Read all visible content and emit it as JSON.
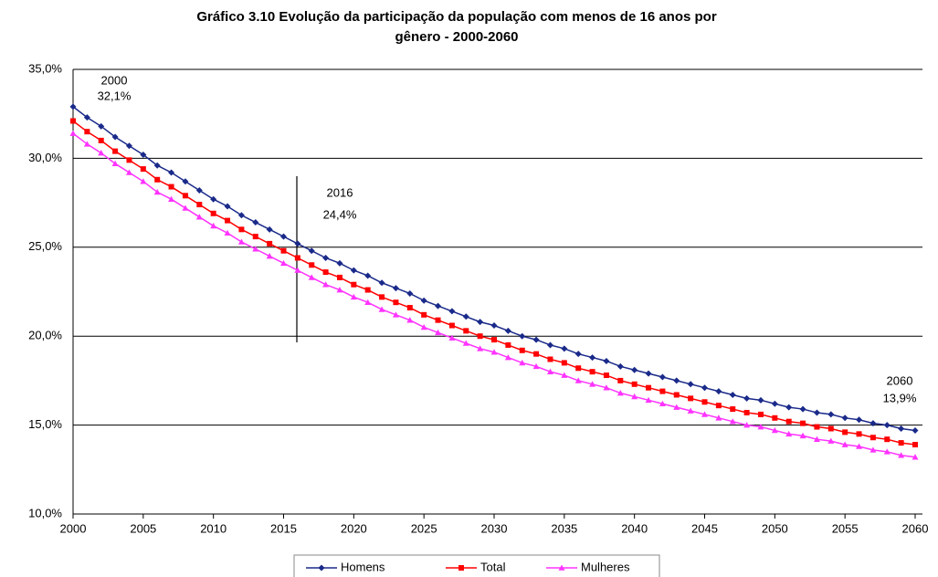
{
  "chart_data": {
    "type": "line",
    "title": [
      "Gráfico 3.10  Evolução da participação da população com menos de 16 anos por",
      "gênero - 2000-2060"
    ],
    "x": [
      2000,
      2001,
      2002,
      2003,
      2004,
      2005,
      2006,
      2007,
      2008,
      2009,
      2010,
      2011,
      2012,
      2013,
      2014,
      2015,
      2016,
      2017,
      2018,
      2019,
      2020,
      2021,
      2022,
      2023,
      2024,
      2025,
      2026,
      2027,
      2028,
      2029,
      2030,
      2031,
      2032,
      2033,
      2034,
      2035,
      2036,
      2037,
      2038,
      2039,
      2040,
      2041,
      2042,
      2043,
      2044,
      2045,
      2046,
      2047,
      2048,
      2049,
      2050,
      2051,
      2052,
      2053,
      2054,
      2055,
      2056,
      2057,
      2058,
      2059,
      2060
    ],
    "series": [
      {
        "name": "Homens",
        "color": "#1a2a8a",
        "marker": "diamond",
        "values": [
          32.9,
          32.3,
          31.8,
          31.2,
          30.7,
          30.2,
          29.6,
          29.2,
          28.7,
          28.2,
          27.7,
          27.3,
          26.8,
          26.4,
          26.0,
          25.6,
          25.2,
          24.8,
          24.4,
          24.1,
          23.7,
          23.4,
          23.0,
          22.7,
          22.4,
          22.0,
          21.7,
          21.4,
          21.1,
          20.8,
          20.6,
          20.3,
          20.0,
          19.8,
          19.5,
          19.3,
          19.0,
          18.8,
          18.6,
          18.3,
          18.1,
          17.9,
          17.7,
          17.5,
          17.3,
          17.1,
          16.9,
          16.7,
          16.5,
          16.4,
          16.2,
          16.0,
          15.9,
          15.7,
          15.6,
          15.4,
          15.3,
          15.1,
          15.0,
          14.8,
          14.7
        ]
      },
      {
        "name": "Total",
        "color": "#ff0000",
        "marker": "square",
        "values": [
          32.1,
          31.5,
          31.0,
          30.4,
          29.9,
          29.4,
          28.8,
          28.4,
          27.9,
          27.4,
          26.9,
          26.5,
          26.0,
          25.6,
          25.2,
          24.8,
          24.4,
          24.0,
          23.6,
          23.3,
          22.9,
          22.6,
          22.2,
          21.9,
          21.6,
          21.2,
          20.9,
          20.6,
          20.3,
          20.0,
          19.8,
          19.5,
          19.2,
          19.0,
          18.7,
          18.5,
          18.2,
          18.0,
          17.8,
          17.5,
          17.3,
          17.1,
          16.9,
          16.7,
          16.5,
          16.3,
          16.1,
          15.9,
          15.7,
          15.6,
          15.4,
          15.2,
          15.1,
          14.9,
          14.8,
          14.6,
          14.5,
          14.3,
          14.2,
          14.0,
          13.9
        ]
      },
      {
        "name": "Mulheres",
        "color": "#ff33ff",
        "marker": "triangle",
        "values": [
          31.4,
          30.8,
          30.3,
          29.7,
          29.2,
          28.7,
          28.1,
          27.7,
          27.2,
          26.7,
          26.2,
          25.8,
          25.3,
          24.9,
          24.5,
          24.1,
          23.7,
          23.3,
          22.9,
          22.6,
          22.2,
          21.9,
          21.5,
          21.2,
          20.9,
          20.5,
          20.2,
          19.9,
          19.6,
          19.3,
          19.1,
          18.8,
          18.5,
          18.3,
          18.0,
          17.8,
          17.5,
          17.3,
          17.1,
          16.8,
          16.6,
          16.4,
          16.2,
          16.0,
          15.8,
          15.6,
          15.4,
          15.2,
          15.0,
          14.9,
          14.7,
          14.5,
          14.4,
          14.2,
          14.1,
          13.9,
          13.8,
          13.6,
          13.5,
          13.3,
          13.2
        ]
      }
    ],
    "xlim": [
      2000,
      2060
    ],
    "xticks": [
      2000,
      2005,
      2010,
      2015,
      2020,
      2025,
      2030,
      2035,
      2040,
      2045,
      2050,
      2055,
      2060
    ],
    "ylim": [
      10,
      35
    ],
    "yticks": [
      {
        "value": 10,
        "label": "10,0%"
      },
      {
        "value": 15,
        "label": "15,0%"
      },
      {
        "value": 20,
        "label": "20,0%"
      },
      {
        "value": 25,
        "label": "25,0%"
      },
      {
        "value": 30,
        "label": "30,0%"
      },
      {
        "value": 35,
        "label": "35,0%"
      }
    ],
    "grid": true,
    "legend": "bottom",
    "annotations": [
      "2000",
      "32,1%",
      "2016",
      "24,4%",
      "2060",
      "13,9%"
    ]
  }
}
